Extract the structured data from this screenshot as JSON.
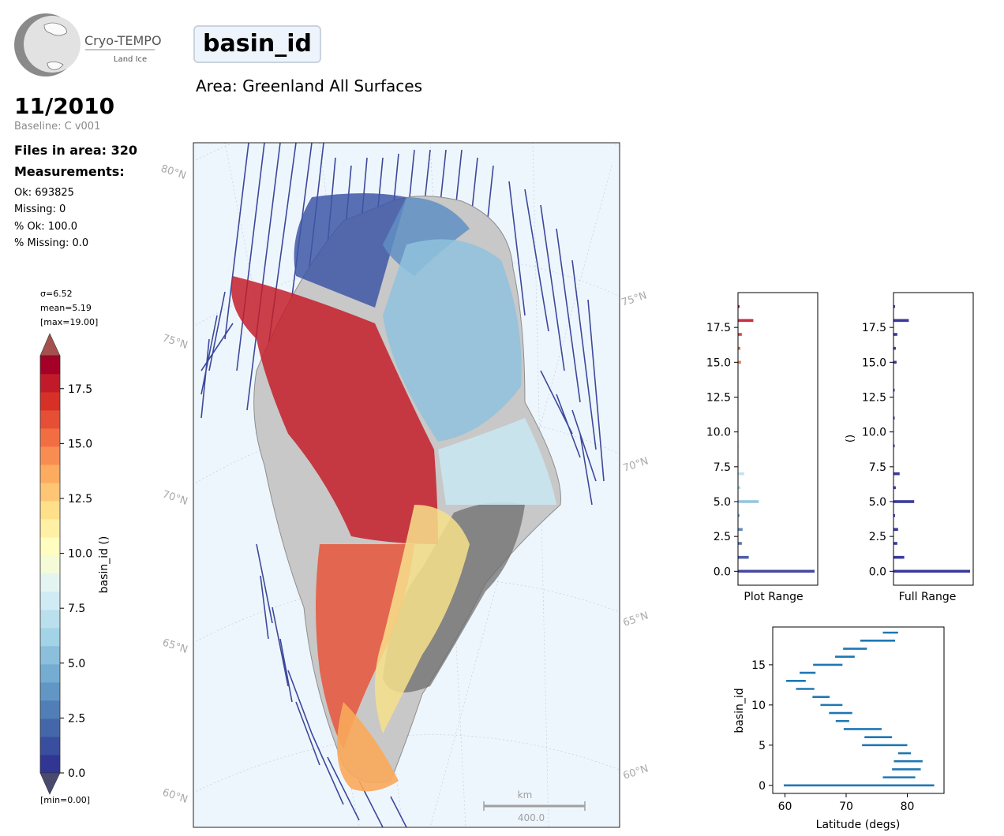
{
  "logo": {
    "name": "Cryo-TEMPO",
    "sub": "Land Ice"
  },
  "header": {
    "parameter": "basin_id",
    "area": "Area: Greenland All Surfaces"
  },
  "info": {
    "date": "11/2010",
    "baseline": "Baseline: C v001",
    "files": "Files in area: 320",
    "measurements_title": "Measurements:",
    "ok": "Ok: 693825",
    "missing": "Missing: 0",
    "pct_ok": "% Ok: 100.0",
    "pct_missing": "% Missing: 0.0"
  },
  "colorbar": {
    "sigma": "σ=6.52",
    "mean": "mean=5.19",
    "max": "[max=19.00]",
    "min": "[min=0.00]",
    "label": "basin_id ()",
    "ticks": [
      "0.0",
      "2.5",
      "5.0",
      "7.5",
      "10.0",
      "12.5",
      "15.0",
      "17.5"
    ],
    "colors": [
      "#313695",
      "#3a4e9f",
      "#4467a9",
      "#527eb7",
      "#6296c4",
      "#75acd1",
      "#8bbfdb",
      "#a3d3e6",
      "#badfed",
      "#d0ebf3",
      "#e4f4f1",
      "#f4fbd6",
      "#fffdbf",
      "#fff0a5",
      "#fee08b",
      "#fdc574",
      "#fcab5f",
      "#f88d52",
      "#f36d43",
      "#e54f35",
      "#d73027",
      "#c11b2a",
      "#a50026"
    ],
    "over_color": "#a6504d",
    "under_color": "#4a4a6e",
    "vmin": 0,
    "vmax": 19
  },
  "map": {
    "background": "#eef6fd",
    "lat_labels_left": [
      "80°N",
      "75°N",
      "70°N",
      "65°N",
      "60°N"
    ],
    "lat_labels_right": [
      "75°N",
      "70°N",
      "65°N",
      "60°N"
    ],
    "scale_unit": "km",
    "scale_value": "400.0"
  },
  "hist_plot_range": {
    "xlabel": "Plot Range",
    "ylabel": "",
    "yticks": [
      "0.0",
      "2.5",
      "5.0",
      "7.5",
      "10.0",
      "12.5",
      "15.0",
      "17.5"
    ],
    "ylim": [
      -1,
      20
    ],
    "bins": [
      {
        "y": 0,
        "value": 1.0
      },
      {
        "y": 1,
        "value": 0.14
      },
      {
        "y": 2,
        "value": 0.05
      },
      {
        "y": 3,
        "value": 0.06
      },
      {
        "y": 4,
        "value": 0.02
      },
      {
        "y": 5,
        "value": 0.27
      },
      {
        "y": 6,
        "value": 0.03
      },
      {
        "y": 7,
        "value": 0.08
      },
      {
        "y": 9,
        "value": 0.01
      },
      {
        "y": 15,
        "value": 0.04
      },
      {
        "y": 16,
        "value": 0.03
      },
      {
        "y": 17,
        "value": 0.05
      },
      {
        "y": 18,
        "value": 0.2
      },
      {
        "y": 19,
        "value": 0.02
      }
    ]
  },
  "hist_full_range": {
    "xlabel": "Full Range",
    "ylabel": "()",
    "yticks": [
      "0.0",
      "2.5",
      "5.0",
      "7.5",
      "10.0",
      "12.5",
      "15.0",
      "17.5"
    ],
    "ylim": [
      -1,
      20
    ],
    "color": "#3a3a9c",
    "bins": [
      {
        "y": 0,
        "value": 1.0
      },
      {
        "y": 1,
        "value": 0.14
      },
      {
        "y": 2,
        "value": 0.05
      },
      {
        "y": 3,
        "value": 0.06
      },
      {
        "y": 4,
        "value": 0.02
      },
      {
        "y": 5,
        "value": 0.27
      },
      {
        "y": 6,
        "value": 0.03
      },
      {
        "y": 7,
        "value": 0.08
      },
      {
        "y": 9,
        "value": 0.01
      },
      {
        "y": 11,
        "value": 0.01
      },
      {
        "y": 13,
        "value": 0.01
      },
      {
        "y": 15,
        "value": 0.04
      },
      {
        "y": 16,
        "value": 0.03
      },
      {
        "y": 17,
        "value": 0.05
      },
      {
        "y": 18,
        "value": 0.2
      },
      {
        "y": 19,
        "value": 0.02
      }
    ]
  },
  "chart_data": {
    "type": "bar",
    "title": "",
    "xlabel": "Latitude (degs)",
    "ylabel": "basin_id",
    "xlim": [
      58,
      86
    ],
    "ylim": [
      -1,
      19.7
    ],
    "xticks": [
      "60",
      "70",
      "80"
    ],
    "yticks": [
      "0",
      "5",
      "10",
      "15"
    ],
    "color": "#1f77b4",
    "ranges": [
      {
        "basin": 0,
        "min": 59.8,
        "max": 84.4
      },
      {
        "basin": 1,
        "min": 76.0,
        "max": 81.3
      },
      {
        "basin": 2,
        "min": 77.5,
        "max": 82.2
      },
      {
        "basin": 3,
        "min": 77.8,
        "max": 82.5
      },
      {
        "basin": 4,
        "min": 78.5,
        "max": 80.6
      },
      {
        "basin": 5,
        "min": 72.6,
        "max": 80.0
      },
      {
        "basin": 6,
        "min": 73.0,
        "max": 77.5
      },
      {
        "basin": 7,
        "min": 69.6,
        "max": 75.8
      },
      {
        "basin": 8,
        "min": 68.3,
        "max": 70.5
      },
      {
        "basin": 9,
        "min": 67.2,
        "max": 71.0
      },
      {
        "basin": 10,
        "min": 65.8,
        "max": 69.4
      },
      {
        "basin": 11,
        "min": 64.5,
        "max": 67.3
      },
      {
        "basin": 12,
        "min": 61.8,
        "max": 64.8
      },
      {
        "basin": 13,
        "min": 60.2,
        "max": 63.4
      },
      {
        "basin": 14,
        "min": 62.4,
        "max": 65.0
      },
      {
        "basin": 15,
        "min": 64.6,
        "max": 69.4
      },
      {
        "basin": 16,
        "min": 68.2,
        "max": 71.4
      },
      {
        "basin": 17,
        "min": 69.5,
        "max": 73.4
      },
      {
        "basin": 18,
        "min": 72.3,
        "max": 78.0
      },
      {
        "basin": 19,
        "min": 76.0,
        "max": 78.5
      }
    ]
  }
}
